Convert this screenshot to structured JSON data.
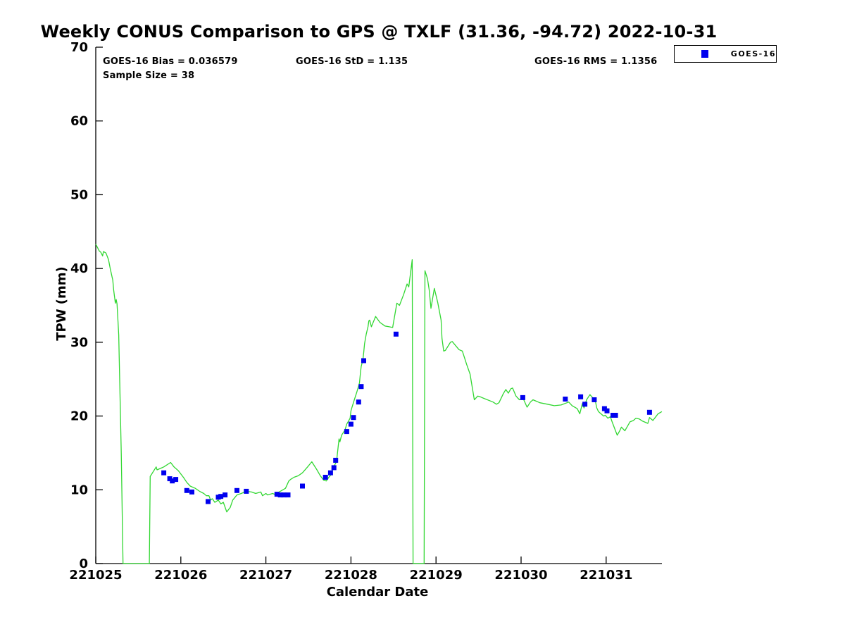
{
  "title": "Weekly CONUS Comparison to GPS @ TXLF (31.36, -94.72) 2022-10-31",
  "stats": {
    "bias": "GOES-16 Bias = 0.036579",
    "std": "GOES-16 StD = 1.135",
    "rms": "GOES-16 RMS = 1.1356",
    "sample": "Sample Size = 38"
  },
  "legend": {
    "label": "GOES-16",
    "marker": "square",
    "marker_color": "#0000ee"
  },
  "axes": {
    "xlabel": "Calendar Date",
    "ylabel": "TPW (mm)"
  },
  "chart_data": {
    "type": "line",
    "title": "Weekly CONUS Comparison to GPS @ TXLF (31.36, -94.72) 2022-10-31",
    "xlabel": "Calendar Date",
    "ylabel": "TPW (mm)",
    "x_tick_labels": [
      "221025",
      "221026",
      "221027",
      "221028",
      "221029",
      "221030",
      "221031"
    ],
    "y_ticks": [
      0,
      10,
      20,
      30,
      40,
      50,
      60,
      70
    ],
    "ylim": [
      0,
      70
    ],
    "xlim_days": [
      0,
      6.66
    ],
    "grid": false,
    "legend_position": "top-right",
    "colors": {
      "gps_line": "#32d732",
      "goes16_marker": "#0000ee",
      "axis": "#000000"
    },
    "series": [
      {
        "name": "GPS",
        "type": "line",
        "color_key": "gps_line",
        "points": [
          [
            0.0,
            43.3
          ],
          [
            0.04,
            42.4
          ],
          [
            0.06,
            42.2
          ],
          [
            0.08,
            41.7
          ],
          [
            0.09,
            42.3
          ],
          [
            0.12,
            42.1
          ],
          [
            0.15,
            41.2
          ],
          [
            0.17,
            40.0
          ],
          [
            0.2,
            38.4
          ],
          [
            0.21,
            37.1
          ],
          [
            0.22,
            36.2
          ],
          [
            0.23,
            35.3
          ],
          [
            0.24,
            35.8
          ],
          [
            0.25,
            35.2
          ],
          [
            0.27,
            31.0
          ],
          [
            0.3,
            15.0
          ],
          [
            0.32,
            0.0
          ],
          [
            0.63,
            0.0
          ],
          [
            0.64,
            11.8
          ],
          [
            0.71,
            13.1
          ],
          [
            0.72,
            12.7
          ],
          [
            0.78,
            13.0
          ],
          [
            0.8,
            13.1
          ],
          [
            0.88,
            13.7
          ],
          [
            0.92,
            13.1
          ],
          [
            0.97,
            12.6
          ],
          [
            1.03,
            11.7
          ],
          [
            1.07,
            11.0
          ],
          [
            1.11,
            10.5
          ],
          [
            1.17,
            10.2
          ],
          [
            1.22,
            9.8
          ],
          [
            1.27,
            9.5
          ],
          [
            1.3,
            9.2
          ],
          [
            1.33,
            9.2
          ],
          [
            1.35,
            8.6
          ],
          [
            1.37,
            8.8
          ],
          [
            1.4,
            8.3
          ],
          [
            1.44,
            8.6
          ],
          [
            1.47,
            8.1
          ],
          [
            1.5,
            8.3
          ],
          [
            1.54,
            7.0
          ],
          [
            1.58,
            7.6
          ],
          [
            1.61,
            8.6
          ],
          [
            1.66,
            9.3
          ],
          [
            1.71,
            9.5
          ],
          [
            1.77,
            9.8
          ],
          [
            1.83,
            9.7
          ],
          [
            1.88,
            9.5
          ],
          [
            1.94,
            9.7
          ],
          [
            1.96,
            9.2
          ],
          [
            2.0,
            9.5
          ],
          [
            2.02,
            9.3
          ],
          [
            2.08,
            9.5
          ],
          [
            2.1,
            9.4
          ],
          [
            2.17,
            9.8
          ],
          [
            2.23,
            10.2
          ],
          [
            2.27,
            11.2
          ],
          [
            2.29,
            11.4
          ],
          [
            2.33,
            11.7
          ],
          [
            2.38,
            11.9
          ],
          [
            2.43,
            12.3
          ],
          [
            2.49,
            13.1
          ],
          [
            2.54,
            13.8
          ],
          [
            2.6,
            12.7
          ],
          [
            2.64,
            11.9
          ],
          [
            2.68,
            11.3
          ],
          [
            2.71,
            11.2
          ],
          [
            2.74,
            11.7
          ],
          [
            2.77,
            12.1
          ],
          [
            2.79,
            13.0
          ],
          [
            2.83,
            13.8
          ],
          [
            2.85,
            15.9
          ],
          [
            2.86,
            16.9
          ],
          [
            2.87,
            16.5
          ],
          [
            2.89,
            17.4
          ],
          [
            2.93,
            18.1
          ],
          [
            2.95,
            18.9
          ],
          [
            2.97,
            19.3
          ],
          [
            2.99,
            19.7
          ],
          [
            3.0,
            20.7
          ],
          [
            3.01,
            21.1
          ],
          [
            3.04,
            22.2
          ],
          [
            3.07,
            23.3
          ],
          [
            3.1,
            24.5
          ],
          [
            3.11,
            25.7
          ],
          [
            3.12,
            26.7
          ],
          [
            3.14,
            27.6
          ],
          [
            3.15,
            28.6
          ],
          [
            3.16,
            29.8
          ],
          [
            3.18,
            31.1
          ],
          [
            3.2,
            32.1
          ],
          [
            3.21,
            32.9
          ],
          [
            3.22,
            33.0
          ],
          [
            3.24,
            32.1
          ],
          [
            3.29,
            33.5
          ],
          [
            3.34,
            32.7
          ],
          [
            3.4,
            32.2
          ],
          [
            3.45,
            32.1
          ],
          [
            3.49,
            32.0
          ],
          [
            3.54,
            35.3
          ],
          [
            3.57,
            35.0
          ],
          [
            3.62,
            36.5
          ],
          [
            3.66,
            37.9
          ],
          [
            3.68,
            37.5
          ],
          [
            3.72,
            41.2
          ],
          [
            3.73,
            0.0
          ],
          [
            3.86,
            0.0
          ],
          [
            3.87,
            39.7
          ],
          [
            3.9,
            38.6
          ],
          [
            3.92,
            37.1
          ],
          [
            3.94,
            34.6
          ],
          [
            3.98,
            37.3
          ],
          [
            4.02,
            35.4
          ],
          [
            4.06,
            33.0
          ],
          [
            4.07,
            30.5
          ],
          [
            4.09,
            28.8
          ],
          [
            4.11,
            28.9
          ],
          [
            4.17,
            30.0
          ],
          [
            4.19,
            30.1
          ],
          [
            4.27,
            29.0
          ],
          [
            4.31,
            28.8
          ],
          [
            4.36,
            27.0
          ],
          [
            4.4,
            25.7
          ],
          [
            4.45,
            22.2
          ],
          [
            4.49,
            22.7
          ],
          [
            4.52,
            22.6
          ],
          [
            4.56,
            22.4
          ],
          [
            4.67,
            21.9
          ],
          [
            4.71,
            21.6
          ],
          [
            4.74,
            21.8
          ],
          [
            4.79,
            23.0
          ],
          [
            4.82,
            23.6
          ],
          [
            4.85,
            23.1
          ],
          [
            4.88,
            23.7
          ],
          [
            4.9,
            23.8
          ],
          [
            4.94,
            22.7
          ],
          [
            4.98,
            22.2
          ],
          [
            5.02,
            22.5
          ],
          [
            5.07,
            21.2
          ],
          [
            5.11,
            21.9
          ],
          [
            5.14,
            22.2
          ],
          [
            5.22,
            21.8
          ],
          [
            5.31,
            21.6
          ],
          [
            5.39,
            21.4
          ],
          [
            5.47,
            21.5
          ],
          [
            5.54,
            21.8
          ],
          [
            5.56,
            21.9
          ],
          [
            5.6,
            21.4
          ],
          [
            5.66,
            21.0
          ],
          [
            5.69,
            20.3
          ],
          [
            5.72,
            21.7
          ],
          [
            5.74,
            21.1
          ],
          [
            5.77,
            22.2
          ],
          [
            5.81,
            22.9
          ],
          [
            5.84,
            22.5
          ],
          [
            5.87,
            22.2
          ],
          [
            5.89,
            21.1
          ],
          [
            5.91,
            20.6
          ],
          [
            5.93,
            20.4
          ],
          [
            5.97,
            20.0
          ],
          [
            5.99,
            20.1
          ],
          [
            6.02,
            19.7
          ],
          [
            6.05,
            19.9
          ],
          [
            6.07,
            19.2
          ],
          [
            6.1,
            18.3
          ],
          [
            6.13,
            17.4
          ],
          [
            6.16,
            18.0
          ],
          [
            6.18,
            18.5
          ],
          [
            6.22,
            18.0
          ],
          [
            6.24,
            18.4
          ],
          [
            6.28,
            19.2
          ],
          [
            6.32,
            19.4
          ],
          [
            6.35,
            19.7
          ],
          [
            6.39,
            19.6
          ],
          [
            6.43,
            19.3
          ],
          [
            6.47,
            19.1
          ],
          [
            6.49,
            19.0
          ],
          [
            6.51,
            19.8
          ],
          [
            6.55,
            19.4
          ],
          [
            6.57,
            19.7
          ],
          [
            6.61,
            20.3
          ],
          [
            6.655,
            20.6
          ]
        ]
      },
      {
        "name": "GOES-16",
        "type": "scatter",
        "marker": "square",
        "color_key": "goes16_marker",
        "points": [
          [
            0.8,
            12.3
          ],
          [
            0.87,
            11.5
          ],
          [
            0.9,
            11.2
          ],
          [
            0.94,
            11.4
          ],
          [
            1.07,
            9.9
          ],
          [
            1.13,
            9.7
          ],
          [
            1.32,
            8.4
          ],
          [
            1.44,
            9.0
          ],
          [
            1.47,
            9.1
          ],
          [
            1.52,
            9.3
          ],
          [
            1.66,
            9.9
          ],
          [
            1.77,
            9.8
          ],
          [
            2.13,
            9.4
          ],
          [
            2.17,
            9.3
          ],
          [
            2.21,
            9.3
          ],
          [
            2.26,
            9.3
          ],
          [
            2.43,
            10.5
          ],
          [
            2.7,
            11.7
          ],
          [
            2.76,
            12.3
          ],
          [
            2.8,
            13.0
          ],
          [
            2.82,
            14.0
          ],
          [
            2.95,
            17.9
          ],
          [
            3.0,
            18.9
          ],
          [
            3.03,
            19.8
          ],
          [
            3.09,
            21.9
          ],
          [
            3.12,
            24.0
          ],
          [
            3.15,
            27.5
          ],
          [
            3.53,
            31.1
          ],
          [
            5.02,
            22.5
          ],
          [
            5.52,
            22.3
          ],
          [
            5.7,
            22.6
          ],
          [
            5.75,
            21.6
          ],
          [
            5.86,
            22.2
          ],
          [
            5.98,
            21.0
          ],
          [
            6.01,
            20.7
          ],
          [
            6.08,
            20.1
          ],
          [
            6.11,
            20.1
          ],
          [
            6.51,
            20.5
          ]
        ]
      }
    ]
  }
}
